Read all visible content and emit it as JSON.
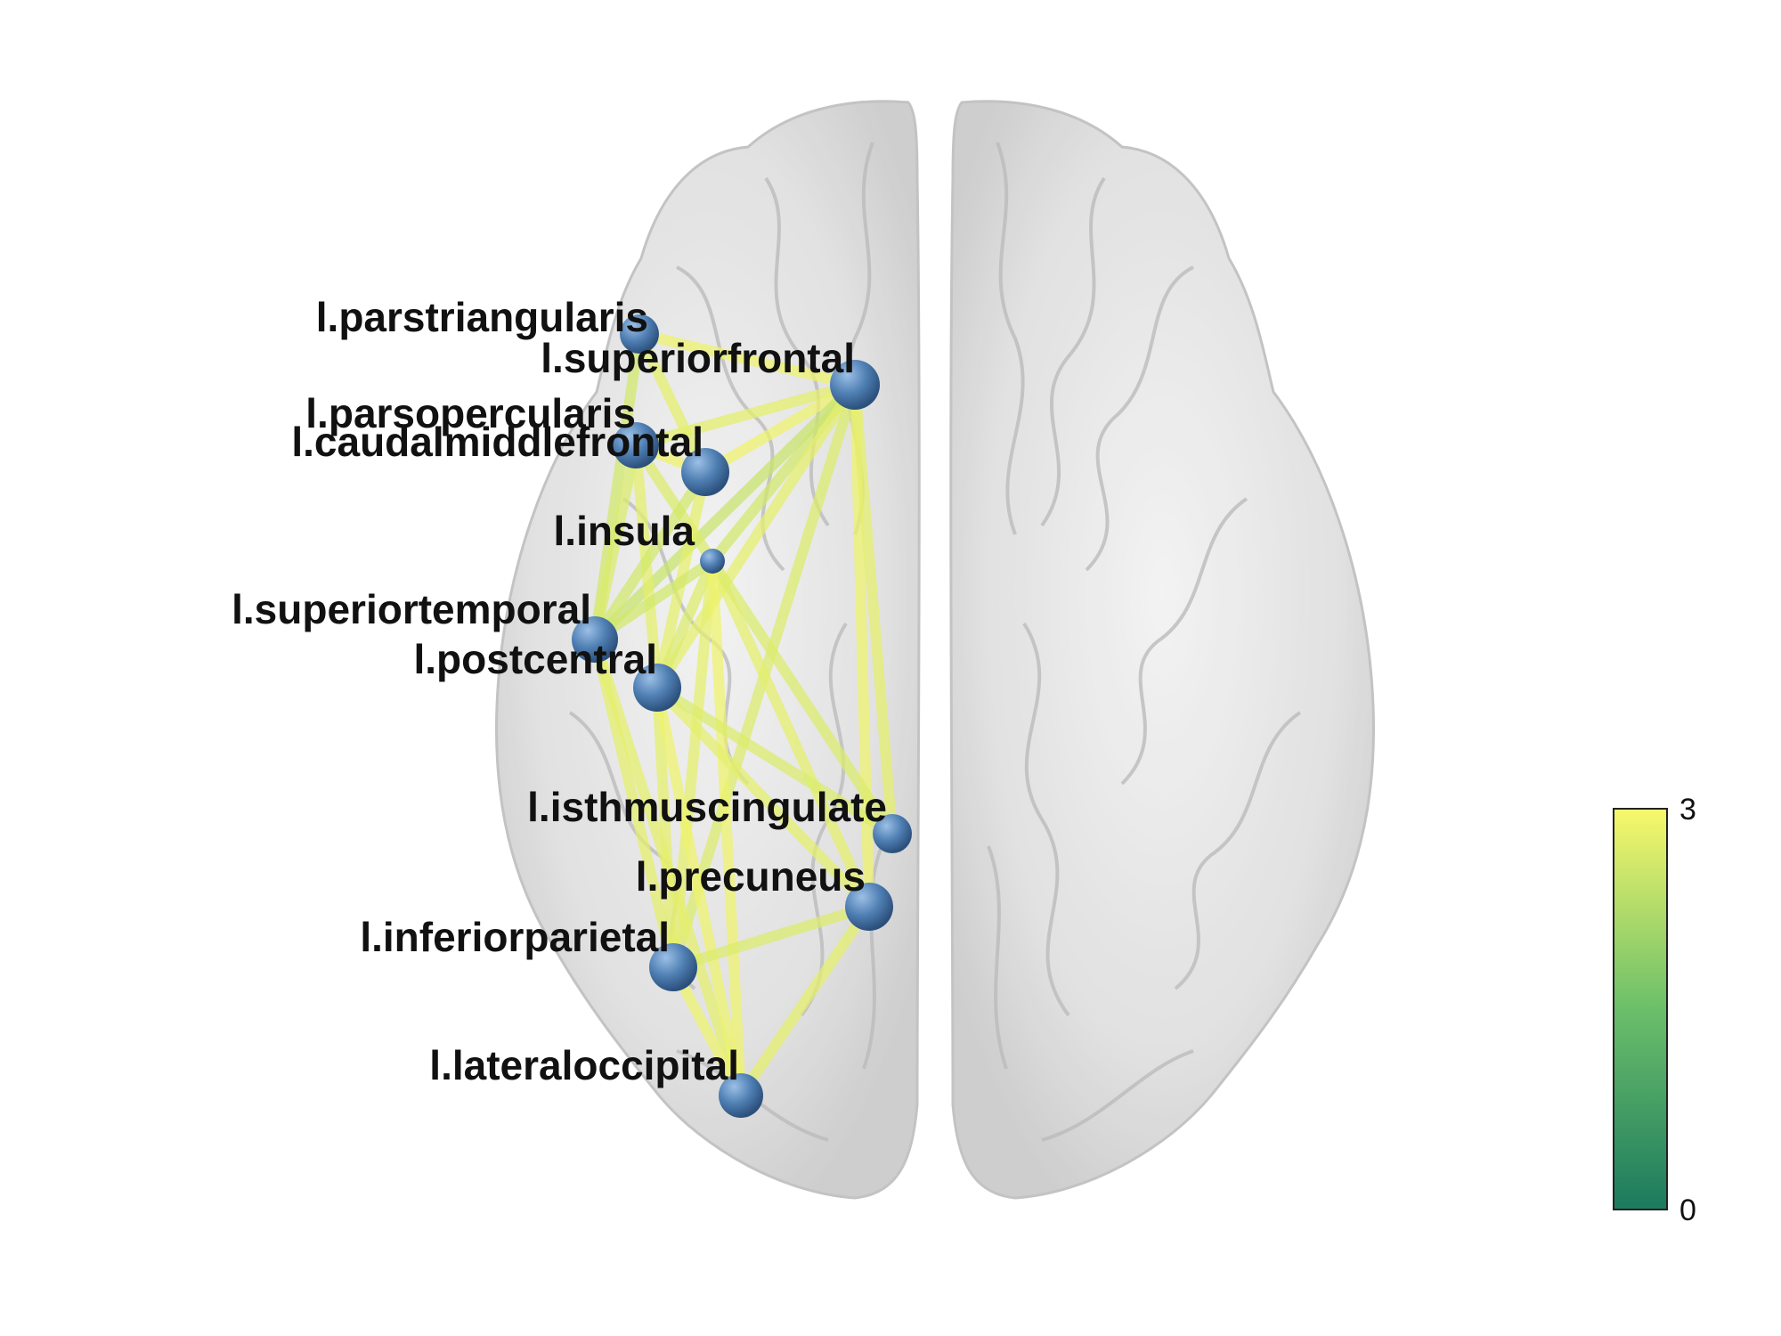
{
  "nodes": [
    {
      "id": "parstriangularis",
      "label": "l.parstriangularis"
    },
    {
      "id": "superiorfrontal",
      "label": "l.superiorfrontal"
    },
    {
      "id": "parsopercularis",
      "label": "l.parsopercularis"
    },
    {
      "id": "caudalmiddlefrontal",
      "label": "l.caudalmiddlefrontal"
    },
    {
      "id": "insula",
      "label": "l.insula"
    },
    {
      "id": "superiortemporal",
      "label": "l.superiortemporal"
    },
    {
      "id": "postcentral",
      "label": "l.postcentral"
    },
    {
      "id": "isthmuscingulate",
      "label": "l.isthmuscingulate"
    },
    {
      "id": "precuneus",
      "label": "l.precuneus"
    },
    {
      "id": "inferiorparietal",
      "label": "l.inferiorparietal"
    },
    {
      "id": "lateraloccipital",
      "label": "l.lateraloccipital"
    }
  ],
  "edges": [
    {
      "from": "parstriangularis",
      "to": "superiorfrontal",
      "weight": 2.9
    },
    {
      "from": "superiorfrontal",
      "to": "parsopercularis",
      "weight": 2.8
    },
    {
      "from": "superiorfrontal",
      "to": "caudalmiddlefrontal",
      "weight": 2.9
    },
    {
      "from": "superiorfrontal",
      "to": "insula",
      "weight": 2.6
    },
    {
      "from": "superiorfrontal",
      "to": "superiortemporal",
      "weight": 2.5
    },
    {
      "from": "superiorfrontal",
      "to": "postcentral",
      "weight": 2.8
    },
    {
      "from": "superiorfrontal",
      "to": "precuneus",
      "weight": 2.9
    },
    {
      "from": "superiorfrontal",
      "to": "isthmuscingulate",
      "weight": 2.8
    },
    {
      "from": "superiorfrontal",
      "to": "inferiorparietal",
      "weight": 2.7
    },
    {
      "from": "parstriangularis",
      "to": "superiortemporal",
      "weight": 2.6
    },
    {
      "from": "parstriangularis",
      "to": "caudalmiddlefrontal",
      "weight": 2.8
    },
    {
      "from": "parsopercularis",
      "to": "caudalmiddlefrontal",
      "weight": 2.9
    },
    {
      "from": "parsopercularis",
      "to": "superiortemporal",
      "weight": 2.7
    },
    {
      "from": "parsopercularis",
      "to": "postcentral",
      "weight": 2.8
    },
    {
      "from": "parsopercularis",
      "to": "insula",
      "weight": 2.7
    },
    {
      "from": "caudalmiddlefrontal",
      "to": "superiortemporal",
      "weight": 2.6
    },
    {
      "from": "caudalmiddlefrontal",
      "to": "postcentral",
      "weight": 2.8
    },
    {
      "from": "insula",
      "to": "superiortemporal",
      "weight": 2.6
    },
    {
      "from": "insula",
      "to": "postcentral",
      "weight": 2.7
    },
    {
      "from": "insula",
      "to": "precuneus",
      "weight": 2.8
    },
    {
      "from": "insula",
      "to": "isthmuscingulate",
      "weight": 2.7
    },
    {
      "from": "insula",
      "to": "inferiorparietal",
      "weight": 2.8
    },
    {
      "from": "insula",
      "to": "lateraloccipital",
      "weight": 2.9
    },
    {
      "from": "superiortemporal",
      "to": "inferiorparietal",
      "weight": 2.8
    },
    {
      "from": "superiortemporal",
      "to": "lateraloccipital",
      "weight": 2.8
    },
    {
      "from": "postcentral",
      "to": "precuneus",
      "weight": 2.8
    },
    {
      "from": "postcentral",
      "to": "isthmuscingulate",
      "weight": 2.7
    },
    {
      "from": "postcentral",
      "to": "inferiorparietal",
      "weight": 2.8
    },
    {
      "from": "postcentral",
      "to": "lateraloccipital",
      "weight": 2.9
    },
    {
      "from": "inferiorparietal",
      "to": "lateraloccipital",
      "weight": 2.9
    },
    {
      "from": "inferiorparietal",
      "to": "precuneus",
      "weight": 2.7
    },
    {
      "from": "precuneus",
      "to": "lateraloccipital",
      "weight": 2.8
    }
  ],
  "colorbar": {
    "min_label": "0",
    "max_label": "3",
    "min": 0,
    "max": 3,
    "color_low": "#1c7a5e",
    "color_mid": "#6bbf6a",
    "color_high": "#f8f86b"
  },
  "colors": {
    "node": "#4f7fb3",
    "node_highlight": "#9cc0e6",
    "brain_fill": "#d8d8d8",
    "brain_stroke": "#bdbdbd"
  }
}
